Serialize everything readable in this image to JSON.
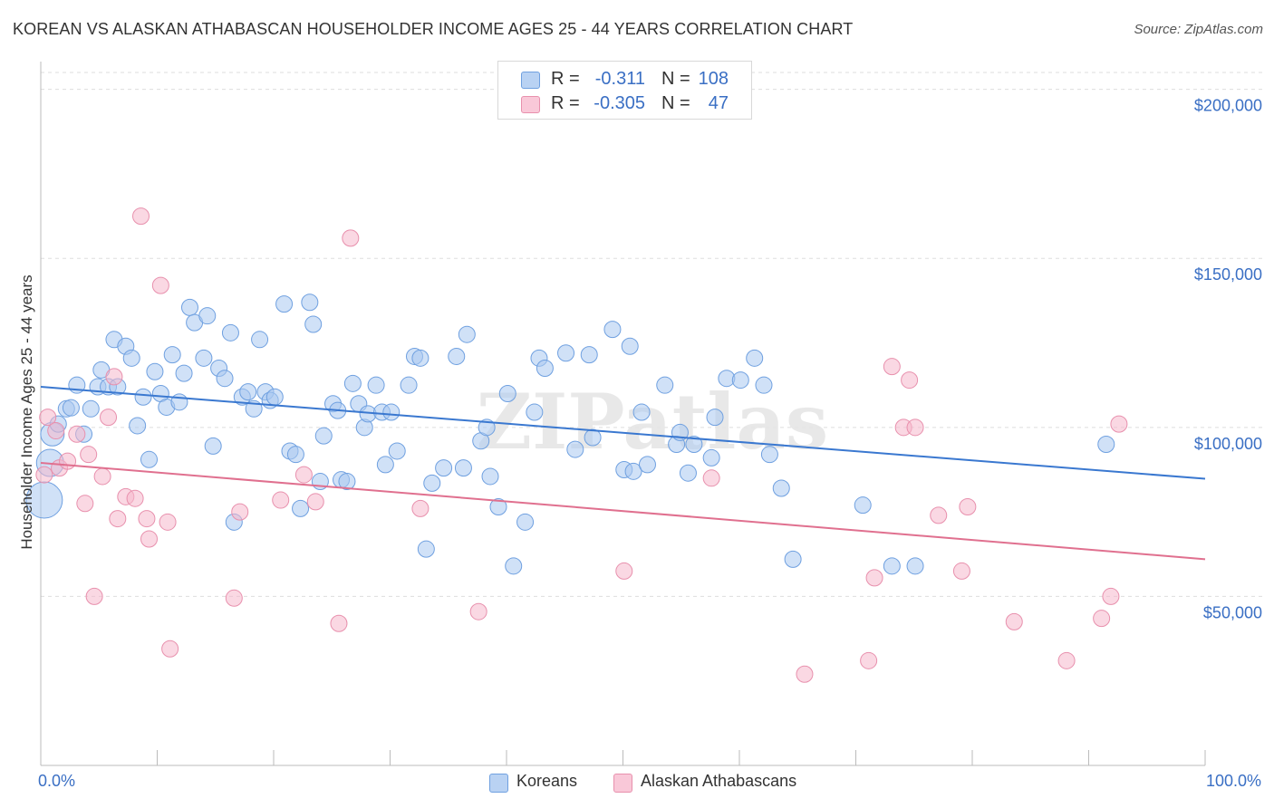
{
  "header": {
    "title": "KOREAN VS ALASKAN ATHABASCAN HOUSEHOLDER INCOME AGES 25 - 44 YEARS CORRELATION CHART",
    "source": "Source: ZipAtlas.com"
  },
  "watermark": "ZIPatlas",
  "legend_top": [
    {
      "r_label": "R =",
      "r_value": "-0.311",
      "n_label": "N =",
      "n_value": "108"
    },
    {
      "r_label": "R =",
      "r_value": "-0.305",
      "n_label": "N =",
      "n_value": "47"
    }
  ],
  "legend_bottom": [
    {
      "label": "Koreans"
    },
    {
      "label": "Alaskan Athabascans"
    }
  ],
  "axis": {
    "x_min_label": "0.0%",
    "x_max_label": "100.0%",
    "ylabel": "Householder Income Ages 25 - 44 years",
    "y_ticks": [
      {
        "value": 50000,
        "label": "$50,000"
      },
      {
        "value": 100000,
        "label": "$100,000"
      },
      {
        "value": 150000,
        "label": "$150,000"
      },
      {
        "value": 200000,
        "label": "$200,000"
      }
    ]
  },
  "chart_data": {
    "type": "scatter",
    "title": "KOREAN VS ALASKAN ATHABASCAN HOUSEHOLDER INCOME AGES 25 - 44 YEARS CORRELATION CHART",
    "xlabel": "",
    "ylabel": "Householder Income Ages 25 - 44 years",
    "xlim": [
      0,
      100
    ],
    "ylim": [
      0,
      205000
    ],
    "grid": true,
    "legend_position": "bottom",
    "colors": {
      "Koreans": "#a9c8f0",
      "Alaskan Athabascans": "#f5b8cc",
      "Koreans_line": "#3a78d0",
      "Alaskan Athabascans_line": "#e0708f",
      "Koreans_stroke": "#6fa0e0",
      "Alaskan Athabascans_stroke": "#e890ad",
      "tick_label": "#3a6fc4"
    },
    "series": [
      {
        "name": "Koreans",
        "trend": {
          "x": [
            0,
            100
          ],
          "y": [
            112000,
            84800
          ]
        },
        "points": [
          [
            0.3,
            78500
          ],
          [
            0.8,
            89500
          ],
          [
            1.0,
            98000
          ],
          [
            1.5,
            101000
          ],
          [
            2.2,
            105500
          ],
          [
            2.6,
            105800
          ],
          [
            3.1,
            112500
          ],
          [
            3.7,
            98000
          ],
          [
            4.3,
            105500
          ],
          [
            4.9,
            112000
          ],
          [
            5.2,
            117000
          ],
          [
            5.8,
            112000
          ],
          [
            6.3,
            126000
          ],
          [
            6.6,
            112000
          ],
          [
            7.3,
            124000
          ],
          [
            7.8,
            120500
          ],
          [
            8.3,
            100500
          ],
          [
            8.8,
            109000
          ],
          [
            9.3,
            90500
          ],
          [
            9.8,
            116500
          ],
          [
            10.3,
            110000
          ],
          [
            10.8,
            106000
          ],
          [
            11.3,
            121500
          ],
          [
            11.9,
            107500
          ],
          [
            12.3,
            116000
          ],
          [
            12.8,
            135500
          ],
          [
            13.2,
            131000
          ],
          [
            14.0,
            120500
          ],
          [
            14.3,
            133000
          ],
          [
            14.8,
            94500
          ],
          [
            15.3,
            117500
          ],
          [
            15.8,
            114500
          ],
          [
            16.3,
            128000
          ],
          [
            16.6,
            72000
          ],
          [
            17.3,
            109000
          ],
          [
            17.8,
            110500
          ],
          [
            18.3,
            105500
          ],
          [
            18.8,
            126000
          ],
          [
            19.3,
            110500
          ],
          [
            19.7,
            108000
          ],
          [
            20.1,
            109000
          ],
          [
            20.9,
            136500
          ],
          [
            21.4,
            93000
          ],
          [
            21.9,
            92000
          ],
          [
            22.3,
            76000
          ],
          [
            23.1,
            137000
          ],
          [
            23.4,
            130500
          ],
          [
            24.0,
            84000
          ],
          [
            24.3,
            97500
          ],
          [
            25.1,
            107000
          ],
          [
            25.5,
            105000
          ],
          [
            25.8,
            84500
          ],
          [
            26.3,
            84000
          ],
          [
            26.8,
            113000
          ],
          [
            27.3,
            107000
          ],
          [
            27.8,
            100000
          ],
          [
            28.1,
            104000
          ],
          [
            28.8,
            112500
          ],
          [
            29.3,
            104500
          ],
          [
            29.6,
            89000
          ],
          [
            30.1,
            104500
          ],
          [
            30.6,
            93000
          ],
          [
            31.6,
            112500
          ],
          [
            32.1,
            121000
          ],
          [
            32.6,
            120500
          ],
          [
            33.1,
            64000
          ],
          [
            33.6,
            83500
          ],
          [
            34.6,
            88000
          ],
          [
            35.7,
            121000
          ],
          [
            36.3,
            88000
          ],
          [
            36.6,
            127500
          ],
          [
            37.8,
            96000
          ],
          [
            38.3,
            100000
          ],
          [
            38.6,
            85500
          ],
          [
            39.3,
            76500
          ],
          [
            40.1,
            110000
          ],
          [
            40.6,
            59000
          ],
          [
            41.6,
            72000
          ],
          [
            42.4,
            104500
          ],
          [
            42.8,
            120500
          ],
          [
            43.3,
            117500
          ],
          [
            45.1,
            122000
          ],
          [
            45.9,
            93500
          ],
          [
            47.1,
            121500
          ],
          [
            47.4,
            97000
          ],
          [
            49.1,
            129000
          ],
          [
            50.1,
            87500
          ],
          [
            50.6,
            124000
          ],
          [
            50.9,
            87000
          ],
          [
            51.6,
            104500
          ],
          [
            52.1,
            89000
          ],
          [
            53.6,
            112500
          ],
          [
            54.6,
            95000
          ],
          [
            54.9,
            98500
          ],
          [
            55.6,
            86500
          ],
          [
            56.1,
            95000
          ],
          [
            57.6,
            91000
          ],
          [
            57.9,
            103000
          ],
          [
            58.9,
            114500
          ],
          [
            60.1,
            114000
          ],
          [
            61.3,
            120500
          ],
          [
            62.1,
            112500
          ],
          [
            62.6,
            92000
          ],
          [
            63.6,
            82000
          ],
          [
            64.6,
            61000
          ],
          [
            70.6,
            77000
          ],
          [
            73.1,
            59000
          ],
          [
            75.1,
            59000
          ],
          [
            91.5,
            95000
          ]
        ],
        "sizes_note": "first points near x=0 drawn larger",
        "big": [
          [
            0.3,
            78500,
            20
          ],
          [
            0.8,
            89500,
            15
          ],
          [
            1.0,
            98000,
            13
          ]
        ]
      },
      {
        "name": "Alaskan Athabascans",
        "trend": {
          "x": [
            0,
            100
          ],
          "y": [
            89500,
            61000
          ]
        },
        "points": [
          [
            0.3,
            86000
          ],
          [
            0.6,
            103000
          ],
          [
            1.3,
            99000
          ],
          [
            1.6,
            88000
          ],
          [
            2.3,
            90000
          ],
          [
            3.1,
            98000
          ],
          [
            3.8,
            77500
          ],
          [
            4.1,
            92000
          ],
          [
            4.6,
            50000
          ],
          [
            5.3,
            85500
          ],
          [
            5.8,
            103000
          ],
          [
            6.3,
            115000
          ],
          [
            6.6,
            73000
          ],
          [
            7.3,
            79500
          ],
          [
            8.1,
            79000
          ],
          [
            8.6,
            162500
          ],
          [
            9.1,
            73000
          ],
          [
            9.3,
            67000
          ],
          [
            10.3,
            142000
          ],
          [
            10.9,
            72000
          ],
          [
            11.1,
            34500
          ],
          [
            16.6,
            49500
          ],
          [
            17.1,
            75000
          ],
          [
            20.6,
            78500
          ],
          [
            22.6,
            86000
          ],
          [
            23.6,
            78000
          ],
          [
            25.6,
            42000
          ],
          [
            26.6,
            156000
          ],
          [
            32.6,
            76000
          ],
          [
            37.6,
            45500
          ],
          [
            50.1,
            57500
          ],
          [
            57.6,
            85000
          ],
          [
            65.6,
            27000
          ],
          [
            71.1,
            31000
          ],
          [
            71.6,
            55500
          ],
          [
            73.1,
            118000
          ],
          [
            74.1,
            100000
          ],
          [
            74.6,
            114000
          ],
          [
            75.1,
            100000
          ],
          [
            77.1,
            74000
          ],
          [
            79.1,
            57500
          ],
          [
            79.6,
            76500
          ],
          [
            83.6,
            42500
          ],
          [
            88.1,
            31000
          ],
          [
            91.1,
            43500
          ],
          [
            91.9,
            50000
          ],
          [
            92.6,
            101000
          ]
        ]
      }
    ]
  }
}
